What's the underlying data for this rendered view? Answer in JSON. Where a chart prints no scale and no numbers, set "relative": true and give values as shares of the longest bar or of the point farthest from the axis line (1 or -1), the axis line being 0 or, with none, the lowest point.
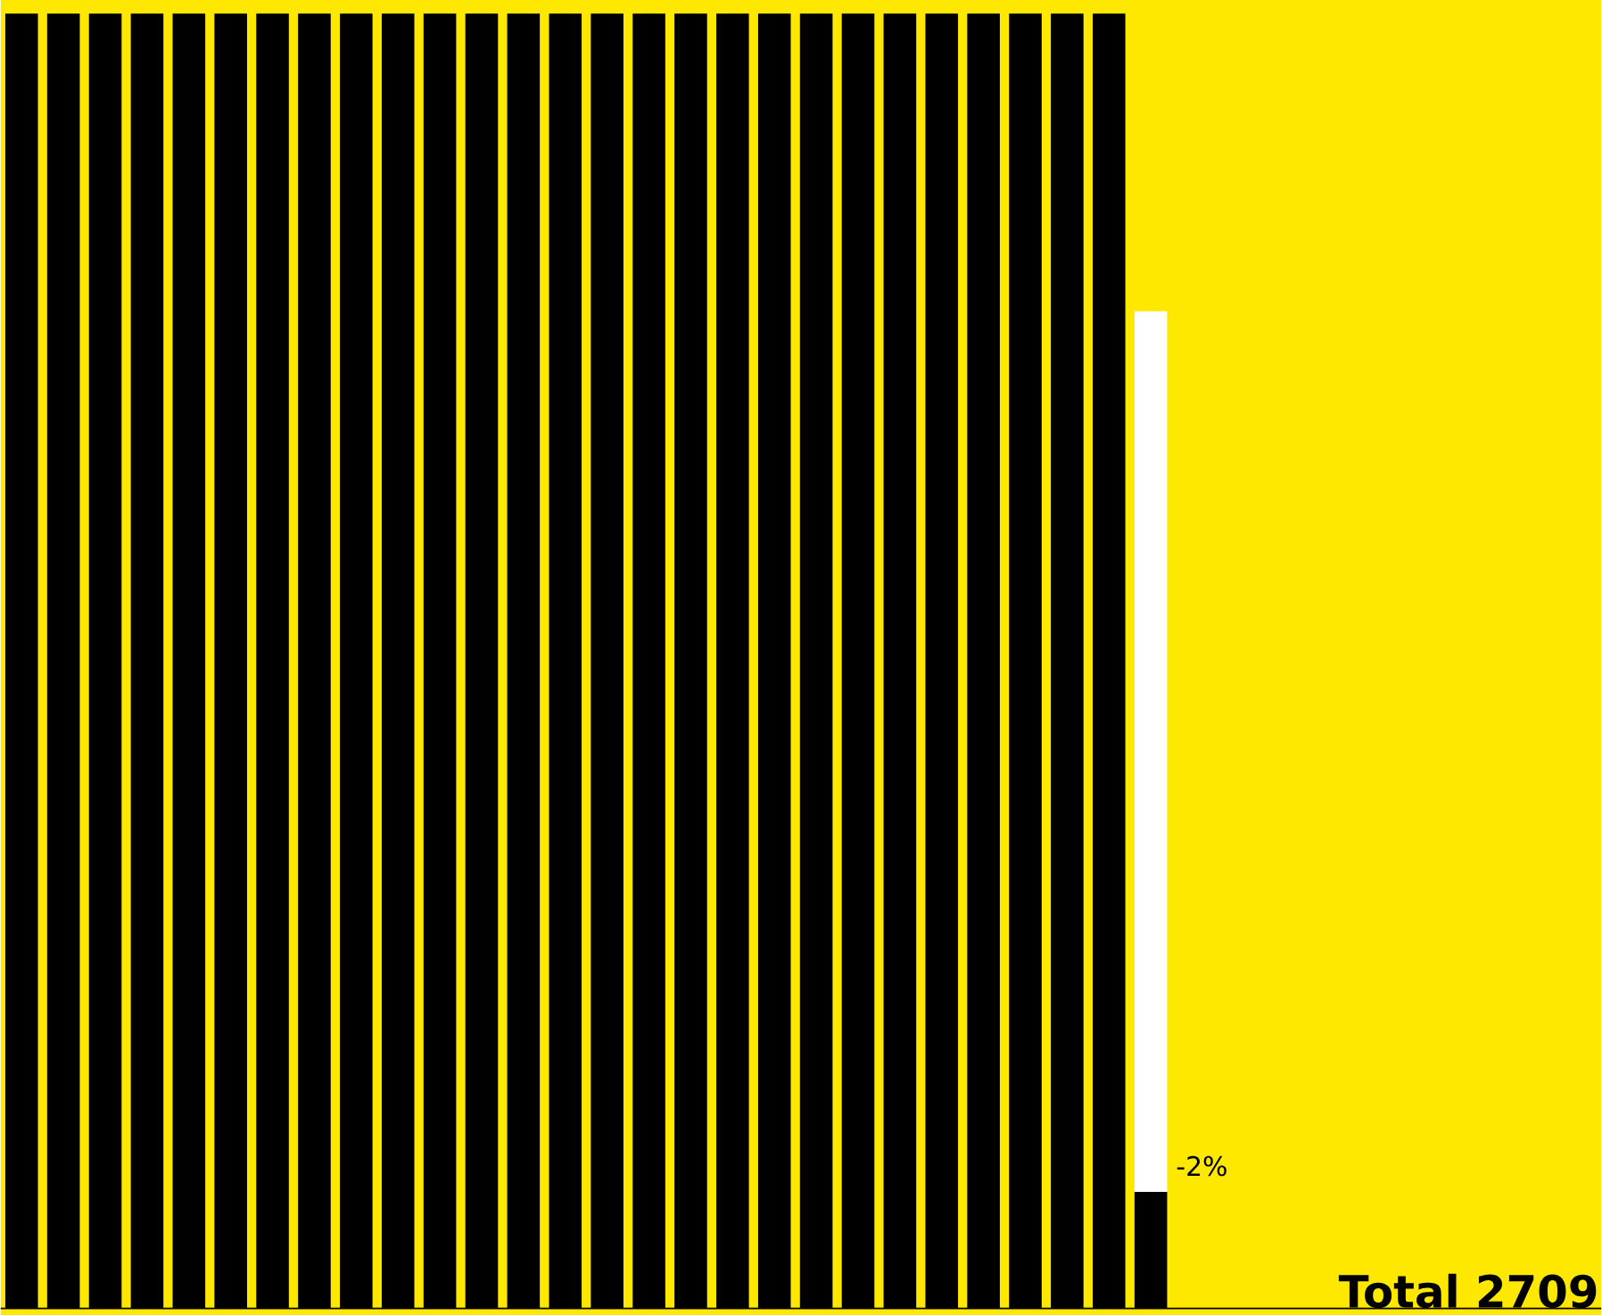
{
  "chart_data": {
    "type": "bar",
    "relative": true,
    "stacked": true,
    "categories": [
      null,
      null,
      null,
      null,
      null,
      null,
      null,
      null,
      null,
      null,
      null,
      null,
      null,
      null,
      null,
      null,
      null,
      null,
      null,
      null,
      null,
      null,
      null,
      null,
      null,
      null,
      null,
      null
    ],
    "series": [
      {
        "color": "#000000",
        "values": [
          1,
          1,
          1,
          1,
          1,
          1,
          1,
          1,
          1,
          1,
          1,
          1,
          1,
          1,
          1,
          1,
          1,
          1,
          1,
          1,
          1,
          1,
          1,
          1,
          1,
          1,
          1,
          0.09
        ]
      },
      {
        "color": "#ffffff",
        "values": [
          0,
          0,
          0,
          0,
          0,
          0,
          0,
          0,
          0,
          0,
          0,
          0,
          0,
          0,
          0,
          0,
          0,
          0,
          0,
          0,
          0,
          0,
          0,
          0,
          0,
          0,
          0,
          0.68
        ]
      }
    ],
    "annotations": [
      "-2%",
      "**Total 2709**"
    ]
  }
}
